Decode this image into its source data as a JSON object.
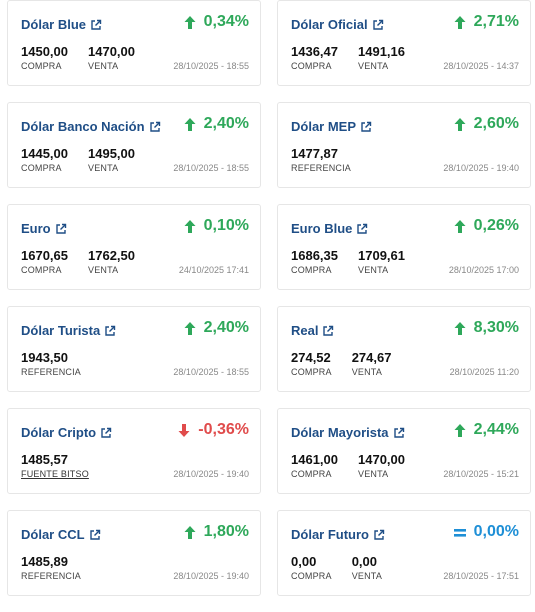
{
  "cards": [
    {
      "title": "Dólar Blue",
      "change": "0,34%",
      "trend": "up",
      "values": [
        {
          "num": "1450,00",
          "lbl": "COMPRA"
        },
        {
          "num": "1470,00",
          "lbl": "VENTA"
        }
      ],
      "date": "28/10/2025 - 18:55"
    },
    {
      "title": "Dólar Oficial",
      "change": "2,71%",
      "trend": "up",
      "values": [
        {
          "num": "1436,47",
          "lbl": "COMPRA"
        },
        {
          "num": "1491,16",
          "lbl": "VENTA"
        }
      ],
      "date": "28/10/2025 - 14:37"
    },
    {
      "title": "Dólar Banco Nación",
      "change": "2,40%",
      "trend": "up",
      "values": [
        {
          "num": "1445,00",
          "lbl": "COMPRA"
        },
        {
          "num": "1495,00",
          "lbl": "VENTA"
        }
      ],
      "date": "28/10/2025 - 18:55"
    },
    {
      "title": "Dólar MEP",
      "change": "2,60%",
      "trend": "up",
      "values": [
        {
          "num": "1477,87",
          "lbl": "REFERENCIA"
        }
      ],
      "date": "28/10/2025 - 19:40"
    },
    {
      "title": "Euro",
      "change": "0,10%",
      "trend": "up",
      "values": [
        {
          "num": "1670,65",
          "lbl": "COMPRA"
        },
        {
          "num": "1762,50",
          "lbl": "VENTA"
        }
      ],
      "date": "24/10/2025 17:41"
    },
    {
      "title": "Euro Blue",
      "change": "0,26%",
      "trend": "up",
      "values": [
        {
          "num": "1686,35",
          "lbl": "COMPRA"
        },
        {
          "num": "1709,61",
          "lbl": "VENTA"
        }
      ],
      "date": "28/10/2025 17:00"
    },
    {
      "title": "Dólar Turista",
      "change": "2,40%",
      "trend": "up",
      "values": [
        {
          "num": "1943,50",
          "lbl": "REFERENCIA"
        }
      ],
      "date": "28/10/2025 - 18:55"
    },
    {
      "title": "Real",
      "change": "8,30%",
      "trend": "up",
      "values": [
        {
          "num": "274,52",
          "lbl": "COMPRA"
        },
        {
          "num": "274,67",
          "lbl": "VENTA"
        }
      ],
      "date": "28/10/2025 11:20"
    },
    {
      "title": "Dólar Cripto",
      "change": "-0,36%",
      "trend": "down",
      "values": [
        {
          "num": "1485,57",
          "lbl": "FUENTE BITSO",
          "link": true
        }
      ],
      "date": "28/10/2025 - 19:40"
    },
    {
      "title": "Dólar Mayorista",
      "change": "2,44%",
      "trend": "up",
      "values": [
        {
          "num": "1461,00",
          "lbl": "COMPRA"
        },
        {
          "num": "1470,00",
          "lbl": "VENTA"
        }
      ],
      "date": "28/10/2025 - 15:21"
    },
    {
      "title": "Dólar CCL",
      "change": "1,80%",
      "trend": "up",
      "values": [
        {
          "num": "1485,89",
          "lbl": "REFERENCIA"
        }
      ],
      "date": "28/10/2025 - 19:40"
    },
    {
      "title": "Dólar Futuro",
      "change": "0,00%",
      "trend": "flat",
      "values": [
        {
          "num": "0,00",
          "lbl": "COMPRA"
        },
        {
          "num": "0,00",
          "lbl": "VENTA"
        }
      ],
      "date": "28/10/2025 - 17:51"
    }
  ],
  "icons": {
    "title": "external-link-icon",
    "up": "arrow-up-icon",
    "down": "arrow-down-icon",
    "flat": "equals-icon"
  },
  "colors": {
    "title": "#1f4e86",
    "up": "#2ea85a",
    "down": "#e04b4b",
    "flat": "#1e8fd6",
    "border": "#e6e6e6"
  }
}
